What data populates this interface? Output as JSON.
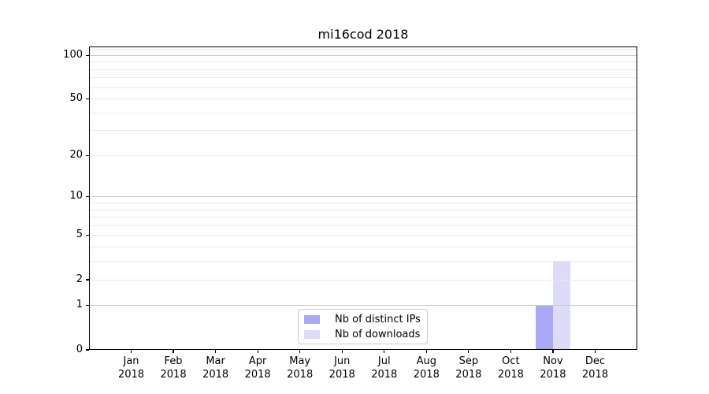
{
  "chart_data": {
    "type": "bar",
    "title": "mi16cod 2018",
    "xlabel": "",
    "ylabel": "",
    "x_year": "2018",
    "categories": [
      "Jan",
      "Feb",
      "Mar",
      "Apr",
      "May",
      "Jun",
      "Jul",
      "Aug",
      "Sep",
      "Oct",
      "Nov",
      "Dec"
    ],
    "series": [
      {
        "name": "Nb of distinct IPs",
        "color": "#a9a9f8",
        "values": [
          0,
          0,
          0,
          0,
          0,
          0,
          0,
          0,
          0,
          0,
          1,
          0
        ]
      },
      {
        "name": "Nb of downloads",
        "color": "#dcdcfa",
        "values": [
          0,
          0,
          0,
          0,
          0,
          0,
          0,
          0,
          0,
          0,
          3,
          0
        ]
      }
    ],
    "y_axis": {
      "scale": "log10(1+y)",
      "min": 0,
      "max": 115,
      "labeled_ticks": [
        0,
        1,
        2,
        5,
        10,
        20,
        50,
        100
      ],
      "major_gridlines": [
        1,
        10,
        100
      ],
      "minor_gridlines": [
        2,
        3,
        4,
        5,
        6,
        7,
        8,
        9,
        20,
        30,
        40,
        50,
        60,
        70,
        80,
        90,
        110
      ]
    },
    "legend": {
      "entries": [
        "Nb of distinct IPs",
        "Nb of downloads"
      ],
      "position": "inside-bottom-center"
    },
    "grid": true,
    "colors": {
      "bar_distinct_ips": "#a9a9f8",
      "bar_downloads": "#dcdcfa",
      "major_grid": "#c8c8c8",
      "minor_grid": "#e9e9e9",
      "axis": "#000000",
      "background": "#ffffff"
    }
  }
}
